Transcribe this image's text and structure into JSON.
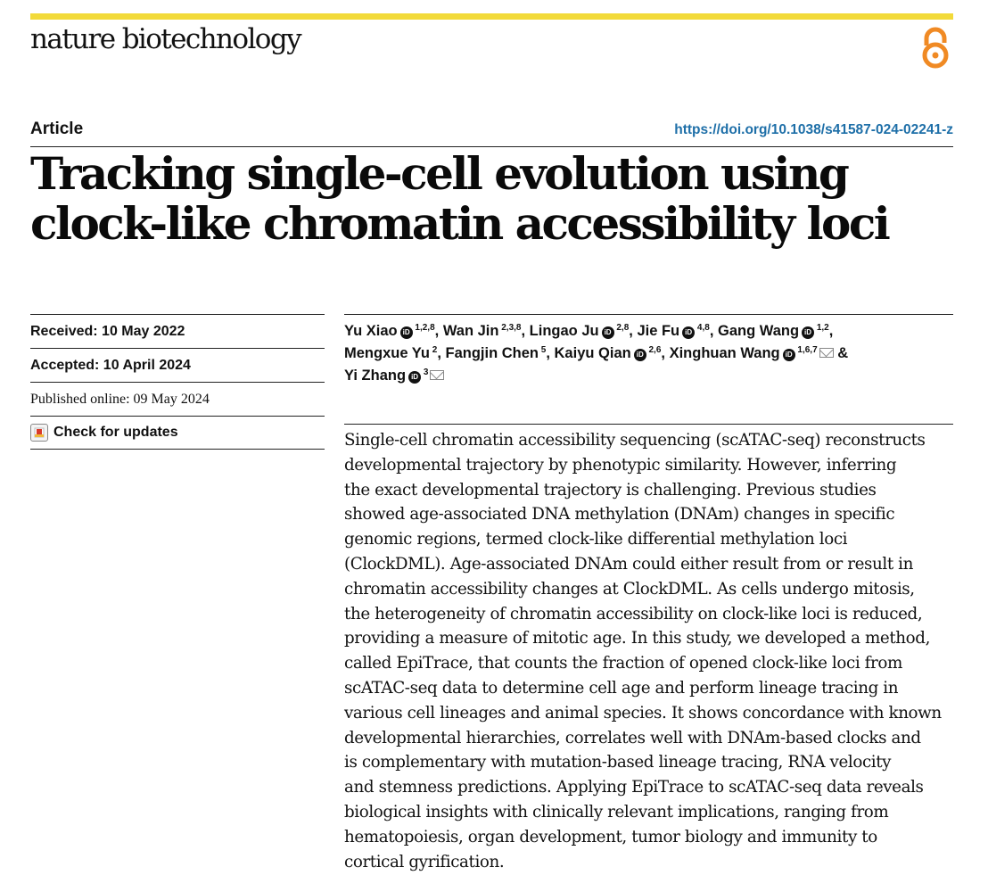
{
  "journal": "nature biotechnology",
  "brand_color": "#f2da3a",
  "open_access_icon": "open-access-icon",
  "article_type": "Article",
  "doi": "https://doi.org/10.1038/s41587-024-02241-z",
  "title_line1": "Tracking single-cell evolution using",
  "title_line2": "clock-like chromatin accessibility loci",
  "dates": {
    "received": "Received: 10 May 2022",
    "accepted": "Accepted: 10 April 2024",
    "published": "Published online: 09 May 2024",
    "check_updates": "Check for updates"
  },
  "authors": [
    {
      "name": "Yu Xiao",
      "sup": "1,2,8",
      "orcid": true
    },
    {
      "name": "Wan Jin",
      "sup": "2,3,8",
      "orcid": false
    },
    {
      "name": "Lingao Ju",
      "sup": "2,8",
      "orcid": true
    },
    {
      "name": "Jie Fu",
      "sup": "4,8",
      "orcid": true
    },
    {
      "name": "Gang Wang",
      "sup": "1,2",
      "orcid": true
    },
    {
      "name": "Mengxue Yu",
      "sup": "2",
      "orcid": false
    },
    {
      "name": "Fangjin Chen",
      "sup": "5",
      "orcid": false
    },
    {
      "name": "Kaiyu Qian",
      "sup": "2,6",
      "orcid": true
    },
    {
      "name": "Xinghuan Wang",
      "sup": "1,6,7",
      "orcid": true,
      "mail": true
    },
    {
      "name": "Yi Zhang",
      "sup": "3",
      "orcid": true,
      "mail": true
    }
  ],
  "author_conjunction": "&",
  "abstract_lines": [
    "Single-cell chromatin accessibility sequencing (scATAC-seq) reconstructs",
    "developmental trajectory by phenotypic similarity. However, inferring",
    "the exact developmental trajectory is challenging. Previous studies",
    "showed age-associated DNA methylation (DNAm) changes in specific",
    "genomic regions, termed clock-like differential methylation loci",
    "(ClockDML). Age-associated DNAm could either result from or result in",
    "chromatin accessibility changes at ClockDML. As cells undergo mitosis,",
    "the heterogeneity of chromatin accessibility on clock-like loci is reduced,",
    "providing a measure of mitotic age. In this study, we developed a method,",
    "called EpiTrace, that counts the fraction of opened clock-like loci from",
    "scATAC-seq data to determine cell age and perform lineage tracing in",
    "various cell lineages and animal species. It shows concordance with known",
    "developmental hierarchies, correlates well with DNAm-based clocks and",
    "is complementary with mutation-based lineage tracing, RNA velocity",
    "and stemness predictions. Applying EpiTrace to scATAC-seq data reveals",
    "biological insights with clinically relevant implications, ranging from",
    "hematopoiesis, organ development, tumor biology and immunity to",
    "cortical gyrification."
  ]
}
